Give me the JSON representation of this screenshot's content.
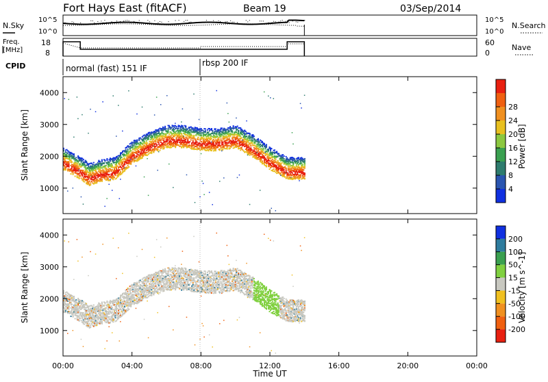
{
  "header": {
    "station": "Fort Hays East (fitACF)",
    "beam": "Beam 19",
    "date": "03/Sep/2014"
  },
  "noise_panel": {
    "left_label": "N.Sky",
    "right_label": "N.Search",
    "left_ticks": [
      "10^5",
      "10^0"
    ],
    "right_ticks": [
      "10^5",
      "10^0"
    ]
  },
  "freq_panel": {
    "left_label_1": "Freq.",
    "left_label_2": "[MHz]",
    "right_label": "Nave",
    "left_ticks": [
      "18",
      "8"
    ],
    "right_ticks": [
      "60",
      "0"
    ]
  },
  "cpid": {
    "label": "CPID",
    "segments": [
      {
        "start": 0.0,
        "end": 8.0,
        "text": "normal (fast) 151 IF"
      },
      {
        "start": 8.0,
        "end": 14.0,
        "text": "rbsp 200 IF"
      }
    ]
  },
  "chart_data": [
    {
      "type": "heatmap",
      "title": "",
      "xlabel": "",
      "ylabel": "Slant Range [km]",
      "xlim": [
        0,
        24
      ],
      "ylim": [
        200,
        4500
      ],
      "yticks": [
        "1000",
        "2000",
        "3000",
        "4000"
      ],
      "colorbar": {
        "label": "Power [dB]",
        "ticks": [
          "4",
          "8",
          "12",
          "16",
          "20",
          "24",
          "28"
        ],
        "colors": [
          "#1030e0",
          "#2a55b0",
          "#2e7c6e",
          "#3aa050",
          "#8cc840",
          "#e8c020",
          "#f09020",
          "#f06010",
          "#e82010"
        ]
      },
      "echo_band": {
        "time_start": 0.0,
        "time_end": 14.0,
        "centers": [
          [
            0,
            1800
          ],
          [
            1,
            1500
          ],
          [
            1.5,
            1300
          ],
          [
            2,
            1400
          ],
          [
            3,
            1500
          ],
          [
            4,
            2000
          ],
          [
            5,
            2300
          ],
          [
            6,
            2500
          ],
          [
            7,
            2500
          ],
          [
            8,
            2400
          ],
          [
            9,
            2400
          ],
          [
            10,
            2500
          ],
          [
            11,
            2200
          ],
          [
            12,
            1800
          ],
          [
            13,
            1500
          ],
          [
            14,
            1500
          ]
        ]
      }
    },
    {
      "type": "heatmap",
      "title": "",
      "xlabel": "Time UT",
      "ylabel": "Slant Range [km]",
      "xlim": [
        0,
        24
      ],
      "ylim": [
        200,
        4500
      ],
      "yticks": [
        "1000",
        "2000",
        "3000",
        "4000"
      ],
      "xticks": [
        "00:00",
        "04:00",
        "08:00",
        "12:00",
        "16:00",
        "20:00",
        "00:00"
      ],
      "colorbar": {
        "label": "Velocity [m s^-1]",
        "ticks": [
          "200",
          "100",
          "50",
          "15",
          "-15",
          "-50",
          "-100",
          "-200"
        ],
        "colors": [
          "#1030e0",
          "#2e7c9e",
          "#3aa050",
          "#80d040",
          "#c8c8c0",
          "#f0c020",
          "#f09020",
          "#f06010",
          "#e82010"
        ]
      }
    }
  ],
  "axis": {
    "xlabel": "Time UT"
  },
  "colors": {
    "axis": "#000000",
    "grid_line": "#bbbbbb"
  }
}
